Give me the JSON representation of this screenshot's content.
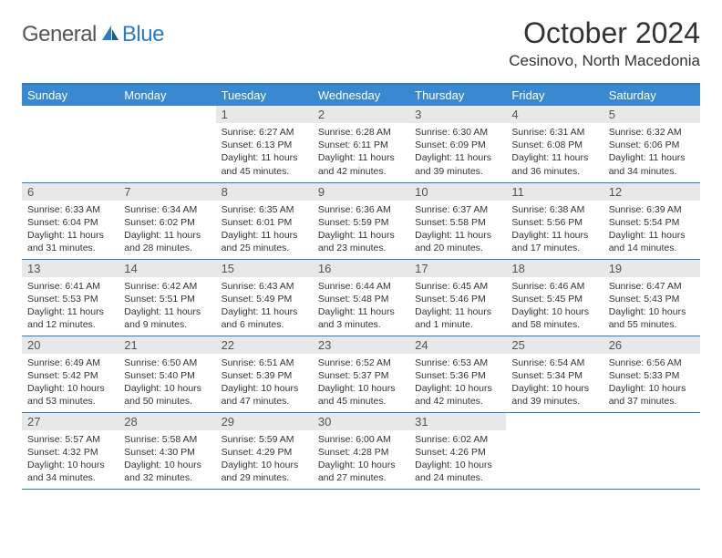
{
  "logo": {
    "text1": "General",
    "text2": "Blue"
  },
  "title": "October 2024",
  "location": "Cesinovo, North Macedonia",
  "colors": {
    "header_bg": "#3a89d0",
    "header_border": "#2d7bc4",
    "daynum_bg": "#e8e8e8",
    "text": "#333333",
    "logo_gray": "#555555",
    "logo_blue": "#2d7bc4"
  },
  "weekdays": [
    "Sunday",
    "Monday",
    "Tuesday",
    "Wednesday",
    "Thursday",
    "Friday",
    "Saturday"
  ],
  "weeks": [
    [
      null,
      null,
      {
        "n": "1",
        "sr": "Sunrise: 6:27 AM",
        "ss": "Sunset: 6:13 PM",
        "dl": "Daylight: 11 hours and 45 minutes."
      },
      {
        "n": "2",
        "sr": "Sunrise: 6:28 AM",
        "ss": "Sunset: 6:11 PM",
        "dl": "Daylight: 11 hours and 42 minutes."
      },
      {
        "n": "3",
        "sr": "Sunrise: 6:30 AM",
        "ss": "Sunset: 6:09 PM",
        "dl": "Daylight: 11 hours and 39 minutes."
      },
      {
        "n": "4",
        "sr": "Sunrise: 6:31 AM",
        "ss": "Sunset: 6:08 PM",
        "dl": "Daylight: 11 hours and 36 minutes."
      },
      {
        "n": "5",
        "sr": "Sunrise: 6:32 AM",
        "ss": "Sunset: 6:06 PM",
        "dl": "Daylight: 11 hours and 34 minutes."
      }
    ],
    [
      {
        "n": "6",
        "sr": "Sunrise: 6:33 AM",
        "ss": "Sunset: 6:04 PM",
        "dl": "Daylight: 11 hours and 31 minutes."
      },
      {
        "n": "7",
        "sr": "Sunrise: 6:34 AM",
        "ss": "Sunset: 6:02 PM",
        "dl": "Daylight: 11 hours and 28 minutes."
      },
      {
        "n": "8",
        "sr": "Sunrise: 6:35 AM",
        "ss": "Sunset: 6:01 PM",
        "dl": "Daylight: 11 hours and 25 minutes."
      },
      {
        "n": "9",
        "sr": "Sunrise: 6:36 AM",
        "ss": "Sunset: 5:59 PM",
        "dl": "Daylight: 11 hours and 23 minutes."
      },
      {
        "n": "10",
        "sr": "Sunrise: 6:37 AM",
        "ss": "Sunset: 5:58 PM",
        "dl": "Daylight: 11 hours and 20 minutes."
      },
      {
        "n": "11",
        "sr": "Sunrise: 6:38 AM",
        "ss": "Sunset: 5:56 PM",
        "dl": "Daylight: 11 hours and 17 minutes."
      },
      {
        "n": "12",
        "sr": "Sunrise: 6:39 AM",
        "ss": "Sunset: 5:54 PM",
        "dl": "Daylight: 11 hours and 14 minutes."
      }
    ],
    [
      {
        "n": "13",
        "sr": "Sunrise: 6:41 AM",
        "ss": "Sunset: 5:53 PM",
        "dl": "Daylight: 11 hours and 12 minutes."
      },
      {
        "n": "14",
        "sr": "Sunrise: 6:42 AM",
        "ss": "Sunset: 5:51 PM",
        "dl": "Daylight: 11 hours and 9 minutes."
      },
      {
        "n": "15",
        "sr": "Sunrise: 6:43 AM",
        "ss": "Sunset: 5:49 PM",
        "dl": "Daylight: 11 hours and 6 minutes."
      },
      {
        "n": "16",
        "sr": "Sunrise: 6:44 AM",
        "ss": "Sunset: 5:48 PM",
        "dl": "Daylight: 11 hours and 3 minutes."
      },
      {
        "n": "17",
        "sr": "Sunrise: 6:45 AM",
        "ss": "Sunset: 5:46 PM",
        "dl": "Daylight: 11 hours and 1 minute."
      },
      {
        "n": "18",
        "sr": "Sunrise: 6:46 AM",
        "ss": "Sunset: 5:45 PM",
        "dl": "Daylight: 10 hours and 58 minutes."
      },
      {
        "n": "19",
        "sr": "Sunrise: 6:47 AM",
        "ss": "Sunset: 5:43 PM",
        "dl": "Daylight: 10 hours and 55 minutes."
      }
    ],
    [
      {
        "n": "20",
        "sr": "Sunrise: 6:49 AM",
        "ss": "Sunset: 5:42 PM",
        "dl": "Daylight: 10 hours and 53 minutes."
      },
      {
        "n": "21",
        "sr": "Sunrise: 6:50 AM",
        "ss": "Sunset: 5:40 PM",
        "dl": "Daylight: 10 hours and 50 minutes."
      },
      {
        "n": "22",
        "sr": "Sunrise: 6:51 AM",
        "ss": "Sunset: 5:39 PM",
        "dl": "Daylight: 10 hours and 47 minutes."
      },
      {
        "n": "23",
        "sr": "Sunrise: 6:52 AM",
        "ss": "Sunset: 5:37 PM",
        "dl": "Daylight: 10 hours and 45 minutes."
      },
      {
        "n": "24",
        "sr": "Sunrise: 6:53 AM",
        "ss": "Sunset: 5:36 PM",
        "dl": "Daylight: 10 hours and 42 minutes."
      },
      {
        "n": "25",
        "sr": "Sunrise: 6:54 AM",
        "ss": "Sunset: 5:34 PM",
        "dl": "Daylight: 10 hours and 39 minutes."
      },
      {
        "n": "26",
        "sr": "Sunrise: 6:56 AM",
        "ss": "Sunset: 5:33 PM",
        "dl": "Daylight: 10 hours and 37 minutes."
      }
    ],
    [
      {
        "n": "27",
        "sr": "Sunrise: 5:57 AM",
        "ss": "Sunset: 4:32 PM",
        "dl": "Daylight: 10 hours and 34 minutes."
      },
      {
        "n": "28",
        "sr": "Sunrise: 5:58 AM",
        "ss": "Sunset: 4:30 PM",
        "dl": "Daylight: 10 hours and 32 minutes."
      },
      {
        "n": "29",
        "sr": "Sunrise: 5:59 AM",
        "ss": "Sunset: 4:29 PM",
        "dl": "Daylight: 10 hours and 29 minutes."
      },
      {
        "n": "30",
        "sr": "Sunrise: 6:00 AM",
        "ss": "Sunset: 4:28 PM",
        "dl": "Daylight: 10 hours and 27 minutes."
      },
      {
        "n": "31",
        "sr": "Sunrise: 6:02 AM",
        "ss": "Sunset: 4:26 PM",
        "dl": "Daylight: 10 hours and 24 minutes."
      },
      null,
      null
    ]
  ]
}
